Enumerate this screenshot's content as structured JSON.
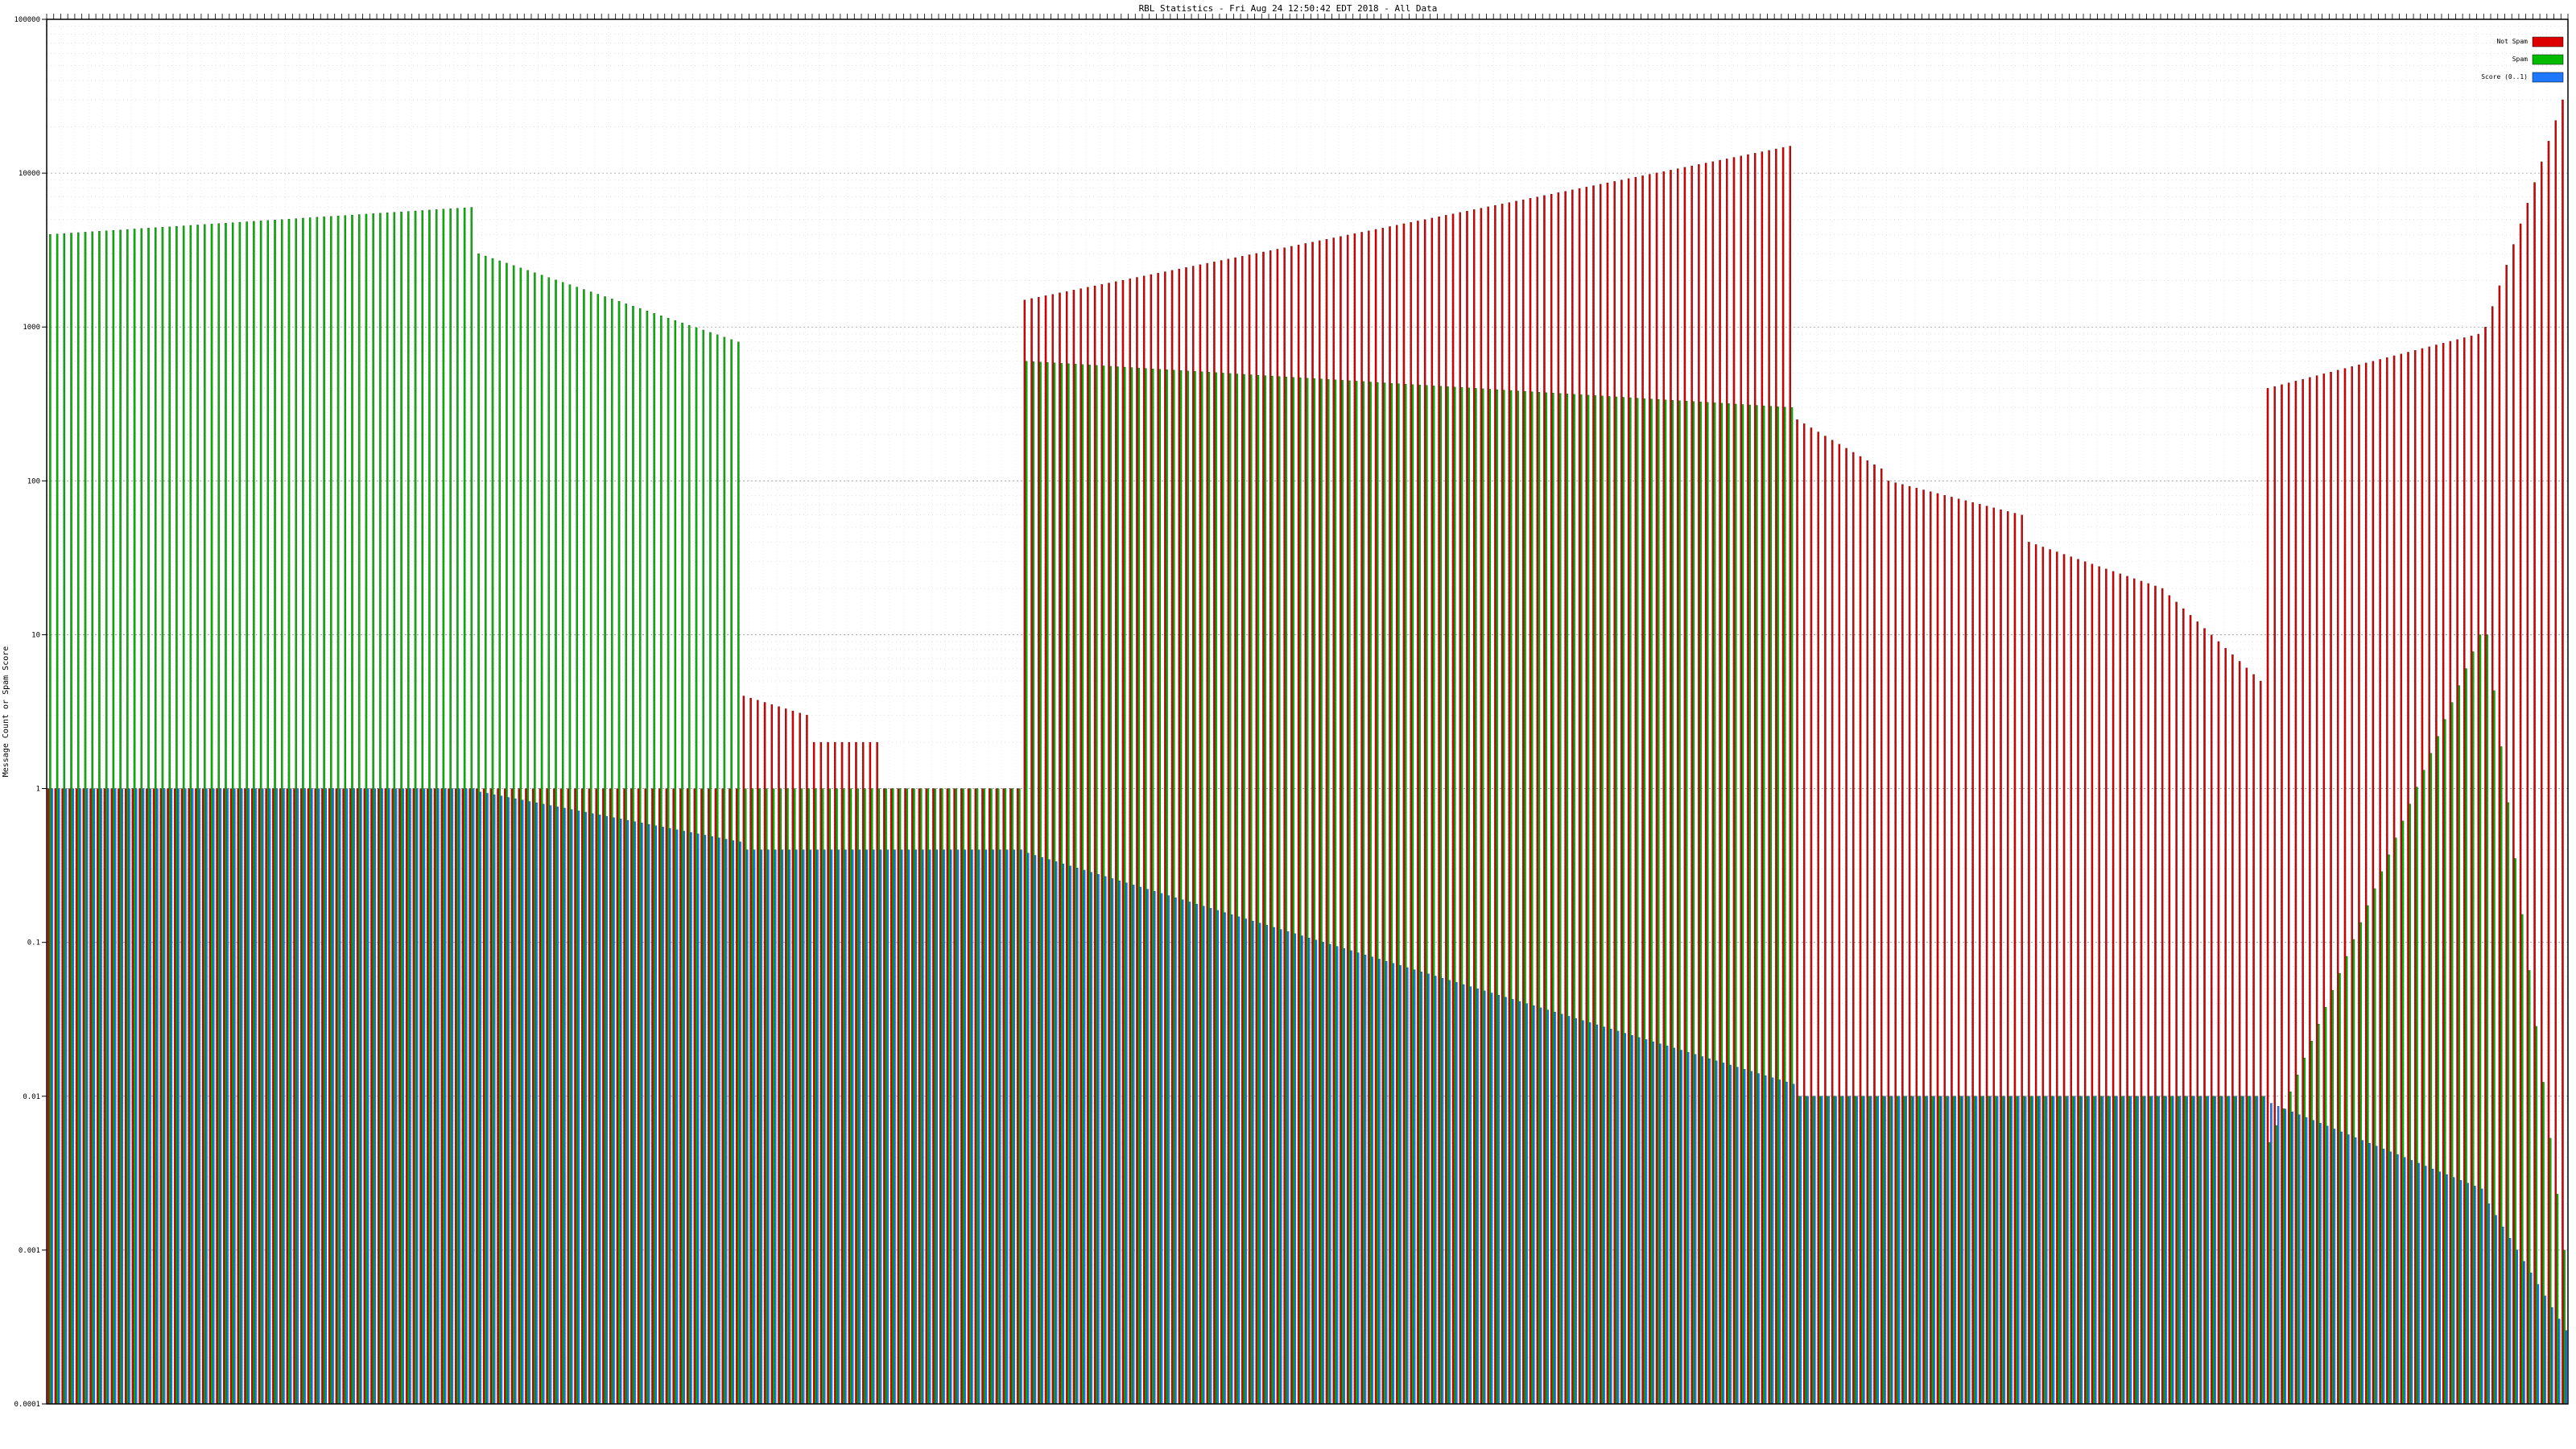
{
  "chart_data": {
    "type": "bar",
    "title": "RBL Statistics - Fri Aug 24 12:50:42 EDT 2018 - All Data",
    "xlabel": "",
    "ylabel": "Message Count or Spam Score",
    "yscale": "log",
    "ylim": [
      0.0001,
      100000
    ],
    "yticks": [
      "0.0001",
      "0.001",
      "0.01",
      "0.1",
      "1",
      "10",
      "100",
      "1000",
      "10000",
      "100000"
    ],
    "grid": true,
    "legend_position": "top-right",
    "series": [
      {
        "name": "Not Spam",
        "color": "#dd0000",
        "segments": [
          {
            "count": 61,
            "from": 1,
            "to": 1
          },
          {
            "count": 38,
            "from": 1,
            "to": 1
          },
          {
            "count": 10,
            "from": 4,
            "to": 3
          },
          {
            "count": 10,
            "from": 2,
            "to": 2
          },
          {
            "count": 20,
            "from": 1,
            "to": 1
          },
          {
            "count": 110,
            "from": 1500,
            "to": 15000
          },
          {
            "count": 13,
            "from": 250,
            "to": 120
          },
          {
            "count": 20,
            "from": 100,
            "to": 60
          },
          {
            "count": 20,
            "from": 40,
            "to": 20
          },
          {
            "count": 14,
            "from": 18,
            "to": 5
          },
          {
            "count": 31,
            "from": 400,
            "to": 900
          },
          {
            "count": 12,
            "from": 1000,
            "to": 30000
          }
        ]
      },
      {
        "name": "Spam",
        "color": "#00bb00",
        "segments": [
          {
            "count": 61,
            "from": 4000,
            "to": 6000
          },
          {
            "count": 38,
            "from": 3000,
            "to": 800
          },
          {
            "count": 10,
            "from": 1,
            "to": 1
          },
          {
            "count": 10,
            "from": 1,
            "to": 1
          },
          {
            "count": 20,
            "from": 1,
            "to": 1
          },
          {
            "count": 110,
            "from": 600,
            "to": 300
          },
          {
            "count": 13,
            "from": 0.01,
            "to": 0.01
          },
          {
            "count": 20,
            "from": 0.01,
            "to": 0.01
          },
          {
            "count": 20,
            "from": 0.01,
            "to": 0.01
          },
          {
            "count": 14,
            "from": 0.01,
            "to": 0.01
          },
          {
            "count": 31,
            "from": 0.005,
            "to": 10
          },
          {
            "count": 12,
            "from": 10,
            "to": 0.001
          }
        ]
      },
      {
        "name": "Score (0..1)",
        "color": "#1e78ff",
        "segments": [
          {
            "count": 61,
            "from": 1,
            "to": 1
          },
          {
            "count": 38,
            "from": 0.95,
            "to": 0.45
          },
          {
            "count": 10,
            "from": 0.4,
            "to": 0.4
          },
          {
            "count": 10,
            "from": 0.4,
            "to": 0.4
          },
          {
            "count": 20,
            "from": 0.4,
            "to": 0.4
          },
          {
            "count": 110,
            "from": 0.38,
            "to": 0.012
          },
          {
            "count": 13,
            "from": 0.01,
            "to": 0.01
          },
          {
            "count": 20,
            "from": 0.01,
            "to": 0.01
          },
          {
            "count": 20,
            "from": 0.01,
            "to": 0.01
          },
          {
            "count": 14,
            "from": 0.01,
            "to": 0.01
          },
          {
            "count": 31,
            "from": 0.009,
            "to": 0.0025
          },
          {
            "count": 12,
            "from": 0.002,
            "to": 0.0003
          }
        ]
      }
    ]
  }
}
